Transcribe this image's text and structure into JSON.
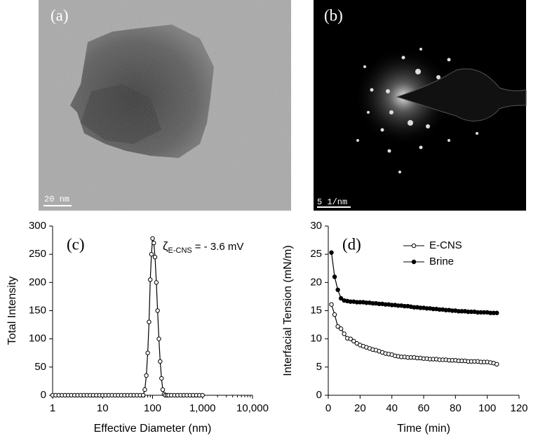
{
  "images": [
    {
      "label": "(a)",
      "scale_bar": "20 nm"
    },
    {
      "label": "(b)",
      "scale_bar": "5 1/nm"
    }
  ],
  "chart_data": [
    {
      "type": "line",
      "panel_label": "(c)",
      "xlabel": "Effective Diameter (nm)",
      "ylabel": "Total Intensity",
      "annotation": {
        "symbol": "ζ",
        "subscript": "E-CNS",
        "text": "= - 3.6 mV"
      },
      "xscale": "log",
      "xlim": [
        1,
        10000
      ],
      "xticks": [
        1,
        10,
        100,
        {
          "value": 1000,
          "label": "1,000"
        },
        {
          "value": 10000,
          "label": "10,000"
        }
      ],
      "xminorticks": [
        2,
        3,
        4,
        5,
        6,
        7,
        8,
        9,
        20,
        30,
        40,
        50,
        60,
        70,
        80,
        90,
        200,
        300,
        400,
        500,
        600,
        700,
        800,
        900,
        2000,
        3000,
        4000,
        5000,
        6000,
        7000,
        8000,
        9000
      ],
      "ylim": [
        0,
        300
      ],
      "yticks": [
        0,
        50,
        100,
        150,
        200,
        250,
        300
      ],
      "color": "#000",
      "marker_fill": "#fff",
      "x": [
        1,
        1.15,
        1.33,
        1.54,
        1.78,
        2.05,
        2.37,
        2.74,
        3.16,
        3.65,
        4.22,
        4.87,
        5.62,
        6.49,
        7.5,
        8.66,
        10,
        11.5,
        13.3,
        15.4,
        17.8,
        20.5,
        23.7,
        27.4,
        31.6,
        36.5,
        42.2,
        48.7,
        56.2,
        64.9,
        70,
        75,
        80,
        85,
        90,
        95,
        100,
        106,
        112,
        119,
        126,
        134,
        142,
        151,
        160,
        170,
        180,
        195,
        210,
        237,
        274,
        316,
        365,
        422,
        487,
        562,
        649,
        750,
        866,
        1000
      ],
      "values": [
        0,
        0,
        0,
        0,
        0,
        0,
        0,
        0,
        0,
        0,
        0,
        0,
        0,
        0,
        0,
        0,
        0,
        0,
        0,
        0,
        0,
        0,
        0,
        0,
        0,
        0,
        0,
        0,
        0,
        0,
        10,
        35,
        75,
        130,
        205,
        250,
        278,
        270,
        245,
        200,
        150,
        100,
        60,
        30,
        10,
        2,
        0,
        0,
        0,
        0,
        0,
        0,
        0,
        0,
        0,
        0,
        0,
        0,
        0,
        0
      ]
    },
    {
      "type": "line",
      "panel_label": "(d)",
      "xlabel": "Time (min)",
      "ylabel": "Interfacial Tension (mN/m)",
      "xlim": [
        0,
        120
      ],
      "xticks": [
        0,
        20,
        40,
        60,
        80,
        100,
        120
      ],
      "ylim": [
        0,
        30
      ],
      "yticks": [
        0,
        5,
        10,
        15,
        20,
        25,
        30
      ],
      "legend": "upper right",
      "x": [
        2,
        4,
        6,
        8,
        10,
        12,
        14,
        16,
        18,
        20,
        22,
        24,
        26,
        28,
        30,
        32,
        34,
        36,
        38,
        40,
        42,
        44,
        46,
        48,
        50,
        52,
        54,
        56,
        58,
        60,
        62,
        64,
        66,
        68,
        70,
        72,
        74,
        76,
        78,
        80,
        82,
        84,
        86,
        88,
        90,
        92,
        94,
        96,
        98,
        100,
        102,
        104,
        106
      ],
      "series": [
        {
          "name": "E-CNS",
          "color": "#000",
          "marker_fill": "#fff",
          "values": [
            16.1,
            14.3,
            12.2,
            11.8,
            10.9,
            10.1,
            10.0,
            9.6,
            9.2,
            8.9,
            8.7,
            8.5,
            8.3,
            8.1,
            8.0,
            7.8,
            7.6,
            7.4,
            7.3,
            7.2,
            7.0,
            6.9,
            6.8,
            6.8,
            6.7,
            6.7,
            6.7,
            6.6,
            6.6,
            6.5,
            6.5,
            6.4,
            6.4,
            6.4,
            6.3,
            6.3,
            6.3,
            6.2,
            6.2,
            6.2,
            6.1,
            6.1,
            6.1,
            6.0,
            6.0,
            6.0,
            6.0,
            5.9,
            5.9,
            5.9,
            5.8,
            5.7,
            5.5
          ]
        },
        {
          "name": "Brine",
          "color": "#000",
          "marker_fill": "#000",
          "values": [
            25.3,
            21.0,
            18.7,
            17.2,
            16.8,
            16.7,
            16.6,
            16.6,
            16.5,
            16.5,
            16.5,
            16.4,
            16.4,
            16.3,
            16.3,
            16.2,
            16.2,
            16.1,
            16.1,
            16.0,
            16.0,
            15.9,
            15.9,
            15.8,
            15.8,
            15.7,
            15.6,
            15.6,
            15.5,
            15.5,
            15.4,
            15.4,
            15.3,
            15.3,
            15.2,
            15.2,
            15.1,
            15.1,
            15.0,
            15.0,
            14.9,
            14.9,
            14.9,
            14.8,
            14.8,
            14.8,
            14.7,
            14.7,
            14.7,
            14.7,
            14.6,
            14.6,
            14.6
          ]
        }
      ]
    }
  ]
}
